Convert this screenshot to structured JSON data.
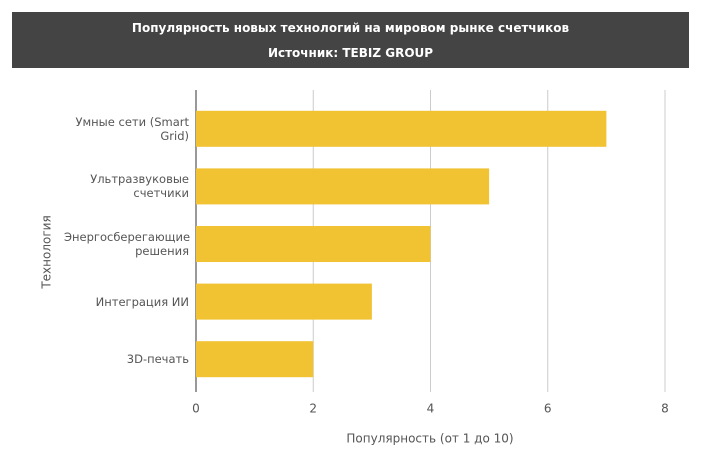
{
  "chart_data": {
    "type": "bar",
    "orientation": "horizontal",
    "title": "Популярность новых технологий на мировом рынке счетчиков",
    "subtitle": "Источник: TEBIZ GROUP",
    "x_label": "Популярность (от 1 до 10)",
    "y_label": "Технология",
    "categories": [
      "Умные сети (Smart Grid)",
      "Ультразвуковые счетчики",
      "Энергосберегающие решения",
      "Интеграция ИИ",
      "3D-печать"
    ],
    "values": [
      7,
      5,
      4,
      3,
      2
    ],
    "color": "#f1c232",
    "xlim": [
      0,
      8
    ],
    "xticks": [
      0,
      2,
      4,
      6,
      8
    ],
    "grid": true
  }
}
